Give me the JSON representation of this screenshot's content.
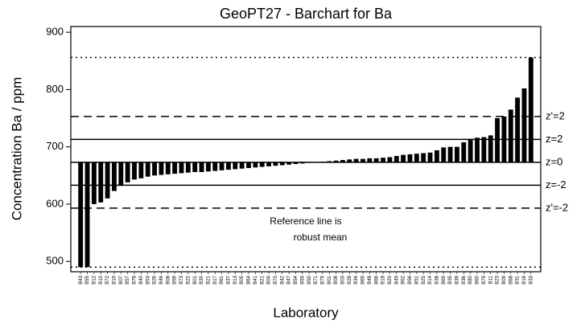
{
  "chart_data": {
    "type": "bar",
    "title": "GeoPT27 - Barchart for Ba",
    "xlabel": "Laboratory",
    "ylabel": "Concentration Ba / ppm",
    "color": "#000000",
    "baseline": 673,
    "ylim": [
      482,
      910
    ],
    "yticks": [
      500,
      600,
      700,
      800,
      900
    ],
    "categories": [
      "B43",
      "B55",
      "B12",
      "B10",
      "B72",
      "B19",
      "B07",
      "B57",
      "B78",
      "B40",
      "B53",
      "B26",
      "B46",
      "B08",
      "B59",
      "B73",
      "B22",
      "B01",
      "B30",
      "B21",
      "B17",
      "B61",
      "B37",
      "B13",
      "B05",
      "B64",
      "B41",
      "B21",
      "B04",
      "B70",
      "B42",
      "B47",
      "B54",
      "B55",
      "B50",
      "B71",
      "B75",
      "B01",
      "B08",
      "B03",
      "B28",
      "B34",
      "B65",
      "B48",
      "B66",
      "B18",
      "B20",
      "B49",
      "B62",
      "B56",
      "B51",
      "B25",
      "B14",
      "B38",
      "B69",
      "B35",
      "B39",
      "B36",
      "B80",
      "B60",
      "B79",
      "B11",
      "B23",
      "B09",
      "B68",
      "B31",
      "B16",
      "B33"
    ],
    "values": [
      490,
      490,
      600,
      603,
      610,
      623,
      632,
      638,
      643,
      645,
      648,
      650,
      651,
      652,
      653,
      654,
      655,
      656,
      656,
      657,
      658,
      659,
      660,
      661,
      662,
      663,
      664,
      665,
      666,
      667,
      668,
      669,
      670,
      671,
      672,
      673,
      674,
      675,
      676,
      677,
      678,
      679,
      679,
      680,
      680,
      681,
      682,
      684,
      686,
      687,
      688,
      689,
      690,
      694,
      699,
      700,
      700,
      708,
      712,
      716,
      717,
      720,
      750,
      753,
      765,
      786,
      802,
      856
    ],
    "reference_lines": [
      {
        "value": 856,
        "style": "dotted"
      },
      {
        "value": 753,
        "style": "dashed",
        "label": "z'=2"
      },
      {
        "value": 713,
        "style": "solid",
        "label": "z=2"
      },
      {
        "value": 673,
        "style": "solid",
        "label": "z=0"
      },
      {
        "value": 633,
        "style": "solid",
        "label": "z=-2"
      },
      {
        "value": 593,
        "style": "dashed",
        "label": "z'=-2"
      },
      {
        "value": 490,
        "style": "dotted"
      }
    ],
    "annotation": [
      "Reference line is",
      "robust mean"
    ]
  }
}
